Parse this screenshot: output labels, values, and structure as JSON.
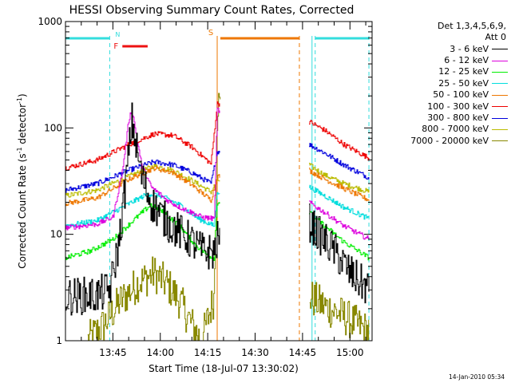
{
  "chart_data": {
    "type": "line",
    "title": "HESSI Observing Summary Count Rates, Corrected",
    "xlabel": "Start Time (18-Jul-07 13:30:02)",
    "ylabel": "Corrected Count Rate (s⁻¹ detector⁻¹)",
    "ylabel_parts": {
      "main": "Corrected Count Rate (s",
      "exp1": "-1",
      "mid": " detector",
      "exp2": "-1",
      "end": ")"
    },
    "y_scale": "log",
    "ylim": [
      1,
      1000
    ],
    "y_ticks": [
      1,
      10,
      100,
      1000
    ],
    "y_tick_labels": [
      "1",
      "10",
      "100",
      "1000"
    ],
    "xlim": [
      "13:30",
      "15:07"
    ],
    "x_ticks": [
      "13:45",
      "14:00",
      "14:15",
      "14:30",
      "14:45",
      "15:00"
    ],
    "legend_header": [
      "Det 1,3,4,5,6,9,",
      "Att 0"
    ],
    "legend_placement": "right",
    "timestamp": "14-Jan-2010 05:34",
    "state_markers": [
      {
        "label": "N",
        "color": "#33dddd",
        "flag_spans": [
          [
            "13:30",
            "13:44"
          ],
          [
            "14:49",
            "15:06"
          ]
        ],
        "boundaries": [
          "13:44",
          "14:48",
          "14:49",
          "15:06"
        ]
      },
      {
        "label": "F",
        "color": "#ee1111",
        "flag_spans": [
          [
            "13:48",
            "13:56"
          ]
        ]
      },
      {
        "label": "S",
        "color": "#ee7700",
        "flag_spans": [
          [
            "14:19",
            "14:44"
          ]
        ],
        "boundaries": [
          "14:18",
          "14:44"
        ]
      }
    ],
    "data_gaps": [
      [
        "14:19",
        "14:47"
      ]
    ],
    "series": [
      {
        "name": "3 - 6 keV",
        "color": "#000000",
        "points": [
          [
            "13:30",
            2.6
          ],
          [
            "13:40",
            2.7
          ],
          [
            "13:44",
            3.0
          ],
          [
            "13:47",
            9
          ],
          [
            "13:50",
            60
          ],
          [
            "13:51",
            120
          ],
          [
            "13:52",
            75
          ],
          [
            "13:54",
            35
          ],
          [
            "13:57",
            20
          ],
          [
            "14:02",
            13
          ],
          [
            "14:06",
            10.5
          ],
          [
            "14:10",
            8.5
          ],
          [
            "14:13",
            7
          ],
          [
            "14:17",
            6.8
          ],
          [
            "14:18",
            9
          ],
          [
            "14:47",
            13
          ],
          [
            "14:50",
            10
          ],
          [
            "14:55",
            7
          ],
          [
            "15:00",
            4.3
          ],
          [
            "15:06",
            3.0
          ]
        ]
      },
      {
        "name": "6 - 12 keV",
        "color": "#dd00dd",
        "points": [
          [
            "13:30",
            11.5
          ],
          [
            "13:40",
            12.5
          ],
          [
            "13:45",
            14.5
          ],
          [
            "13:48",
            40
          ],
          [
            "13:50",
            120
          ],
          [
            "13:51",
            150
          ],
          [
            "13:52",
            100
          ],
          [
            "13:54",
            45
          ],
          [
            "13:57",
            28
          ],
          [
            "14:02",
            21
          ],
          [
            "14:06",
            18
          ],
          [
            "14:10",
            16
          ],
          [
            "14:13",
            14.5
          ],
          [
            "14:17",
            14
          ],
          [
            "14:18",
            150
          ],
          [
            "14:47",
            20
          ],
          [
            "14:52",
            16
          ],
          [
            "14:58",
            12
          ],
          [
            "15:06",
            9
          ]
        ]
      },
      {
        "name": "12 - 25 keV",
        "color": "#00ee00",
        "points": [
          [
            "13:30",
            6
          ],
          [
            "13:38",
            7
          ],
          [
            "13:45",
            9
          ],
          [
            "13:52",
            14
          ],
          [
            "13:57",
            19
          ],
          [
            "14:01",
            16
          ],
          [
            "14:06",
            12
          ],
          [
            "14:11",
            8
          ],
          [
            "14:15",
            6.3
          ],
          [
            "14:17",
            6
          ],
          [
            "14:18",
            20
          ],
          [
            "14:47",
            16
          ],
          [
            "14:52",
            12
          ],
          [
            "14:58",
            8.5
          ],
          [
            "15:06",
            6
          ]
        ]
      },
      {
        "name": "25 - 50 keV",
        "color": "#00dddd",
        "points": [
          [
            "13:30",
            12
          ],
          [
            "13:40",
            13.5
          ],
          [
            "13:48",
            18
          ],
          [
            "13:56",
            24
          ],
          [
            "14:00",
            23
          ],
          [
            "14:06",
            19
          ],
          [
            "14:12",
            14
          ],
          [
            "14:17",
            12
          ],
          [
            "14:18",
            25
          ],
          [
            "14:47",
            28
          ],
          [
            "14:52",
            23
          ],
          [
            "14:58",
            18
          ],
          [
            "15:06",
            14
          ]
        ]
      },
      {
        "name": "50 - 100 keV",
        "color": "#ee7700",
        "points": [
          [
            "13:30",
            19.5
          ],
          [
            "13:40",
            22
          ],
          [
            "13:50",
            33
          ],
          [
            "13:58",
            42
          ],
          [
            "14:04",
            38
          ],
          [
            "14:10",
            29
          ],
          [
            "14:16",
            21
          ],
          [
            "14:18",
            35
          ],
          [
            "14:47",
            40
          ],
          [
            "14:52",
            33
          ],
          [
            "14:58",
            27
          ],
          [
            "15:06",
            21
          ]
        ]
      },
      {
        "name": "100 - 300 keV",
        "color": "#ee0000",
        "points": [
          [
            "13:30",
            42
          ],
          [
            "13:40",
            50
          ],
          [
            "13:50",
            70
          ],
          [
            "13:58",
            88
          ],
          [
            "14:04",
            85
          ],
          [
            "14:10",
            66
          ],
          [
            "14:16",
            46
          ],
          [
            "14:18",
            170
          ],
          [
            "14:47",
            115
          ],
          [
            "14:52",
            95
          ],
          [
            "14:58",
            70
          ],
          [
            "15:06",
            52
          ]
        ]
      },
      {
        "name": "300 - 800 keV",
        "color": "#0000dd",
        "points": [
          [
            "13:30",
            26
          ],
          [
            "13:40",
            30
          ],
          [
            "13:50",
            40
          ],
          [
            "13:58",
            48
          ],
          [
            "14:04",
            45
          ],
          [
            "14:10",
            38
          ],
          [
            "14:16",
            30
          ],
          [
            "14:18",
            60
          ],
          [
            "14:47",
            70
          ],
          [
            "14:52",
            58
          ],
          [
            "14:58",
            45
          ],
          [
            "15:06",
            34
          ]
        ]
      },
      {
        "name": "800 - 7000 keV",
        "color": "#bbbb00",
        "points": [
          [
            "13:30",
            23
          ],
          [
            "13:40",
            26
          ],
          [
            "13:50",
            35
          ],
          [
            "13:58",
            44
          ],
          [
            "14:04",
            40
          ],
          [
            "14:10",
            32
          ],
          [
            "14:16",
            25
          ],
          [
            "14:18",
            32
          ],
          [
            "14:47",
            45
          ],
          [
            "14:52",
            36
          ],
          [
            "14:58",
            30
          ],
          [
            "15:06",
            25
          ]
        ]
      },
      {
        "name": "7000 - 20000 keV",
        "color": "#888800",
        "points": [
          [
            "13:37",
            1.0
          ],
          [
            "13:42",
            1.4
          ],
          [
            "13:47",
            2.3
          ],
          [
            "13:53",
            3.5
          ],
          [
            "13:58",
            4.3
          ],
          [
            "14:02",
            3.4
          ],
          [
            "14:06",
            2.4
          ],
          [
            "14:10",
            1.4
          ],
          [
            "14:13",
            1.0
          ],
          [
            "14:17",
            2.6
          ],
          [
            "14:18",
            180
          ],
          [
            "14:47",
            2.6
          ],
          [
            "14:52",
            2.1
          ],
          [
            "14:58",
            1.7
          ],
          [
            "15:06",
            1.2
          ]
        ]
      }
    ]
  }
}
